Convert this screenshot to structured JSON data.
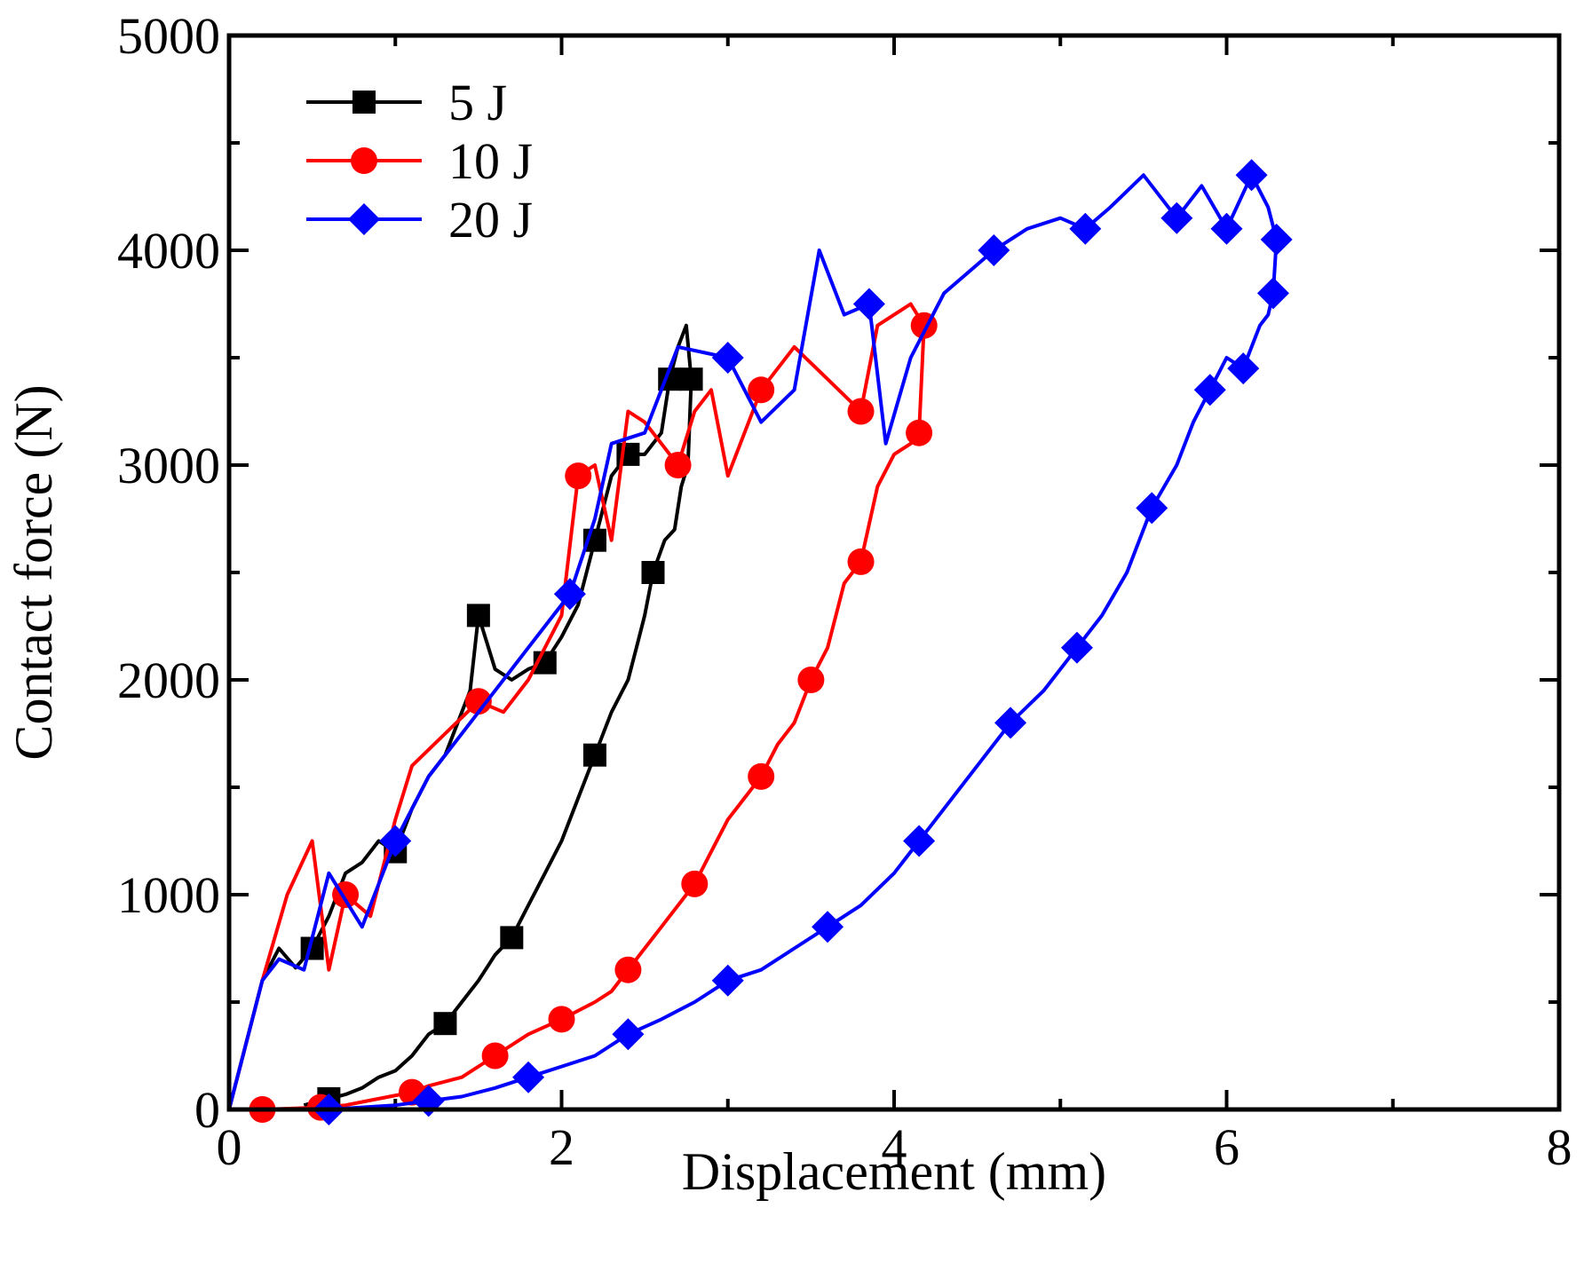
{
  "chart_data": {
    "type": "line",
    "title": "",
    "xlabel": "Displacement (mm)",
    "ylabel": "Contact force (N)",
    "xlim": [
      0,
      8
    ],
    "ylim": [
      0,
      5000
    ],
    "xticks": [
      0,
      2,
      4,
      6,
      8
    ],
    "xtick_labels": [
      "0",
      "2",
      "4",
      "6",
      "8"
    ],
    "yticks": [
      0,
      1000,
      2000,
      3000,
      4000,
      5000
    ],
    "ytick_labels": [
      "0",
      "1000",
      "2000",
      "3000",
      "4000",
      "5000"
    ],
    "legend_position": "top-left",
    "series": [
      {
        "name": "5 J",
        "color": "#000000",
        "marker": "square",
        "x": [
          0,
          0.1,
          0.2,
          0.3,
          0.4,
          0.5,
          0.6,
          0.7,
          0.8,
          0.9,
          1.0,
          1.1,
          1.2,
          1.3,
          1.45,
          1.5,
          1.6,
          1.7,
          1.8,
          1.9,
          2.0,
          2.1,
          2.2,
          2.3,
          2.4,
          2.5,
          2.6,
          2.65,
          2.7,
          2.75,
          2.78,
          2.76,
          2.72,
          2.68,
          2.62,
          2.55,
          2.5,
          2.45,
          2.4,
          2.3,
          2.2,
          2.1,
          2.0,
          1.9,
          1.8,
          1.7,
          1.6,
          1.5,
          1.4,
          1.3,
          1.2,
          1.1,
          1.0,
          0.9,
          0.8,
          0.7,
          0.6,
          0.5,
          0.45
        ],
        "y": [
          0,
          300,
          600,
          750,
          660,
          750,
          900,
          1100,
          1150,
          1250,
          1200,
          1400,
          1550,
          1650,
          1950,
          2300,
          2050,
          2000,
          2050,
          2080,
          2200,
          2350,
          2650,
          2950,
          3050,
          3050,
          3150,
          3400,
          3550,
          3650,
          3400,
          3000,
          2900,
          2700,
          2650,
          2500,
          2300,
          2150,
          2000,
          1850,
          1650,
          1450,
          1250,
          1100,
          950,
          800,
          720,
          600,
          500,
          400,
          350,
          250,
          180,
          150,
          100,
          70,
          50,
          30,
          20
        ],
        "marker_indices": [
          5,
          10,
          15,
          19,
          22,
          24,
          27,
          30,
          35,
          40,
          45,
          49,
          56
        ]
      },
      {
        "name": "10 J",
        "color": "#ff0000",
        "marker": "circle",
        "x": [
          0,
          0.1,
          0.2,
          0.35,
          0.5,
          0.6,
          0.7,
          0.85,
          1.0,
          1.1,
          1.3,
          1.5,
          1.65,
          1.8,
          2.0,
          2.1,
          2.2,
          2.3,
          2.4,
          2.5,
          2.6,
          2.7,
          2.8,
          2.9,
          3.0,
          3.2,
          3.4,
          3.6,
          3.8,
          3.9,
          4.0,
          4.1,
          4.18,
          4.15,
          4.1,
          4.0,
          3.9,
          3.8,
          3.7,
          3.6,
          3.5,
          3.4,
          3.3,
          3.2,
          3.1,
          3.0,
          2.9,
          2.8,
          2.7,
          2.6,
          2.5,
          2.4,
          2.3,
          2.2,
          2.0,
          1.8,
          1.6,
          1.4,
          1.2,
          1.1,
          0.9,
          0.7,
          0.55,
          0.4,
          0.2
        ],
        "y": [
          0,
          300,
          600,
          1000,
          1250,
          650,
          1000,
          900,
          1350,
          1600,
          1750,
          1900,
          1850,
          2000,
          2300,
          2950,
          3000,
          2650,
          3250,
          3200,
          3100,
          3000,
          3250,
          3350,
          2950,
          3350,
          3550,
          3400,
          3250,
          3650,
          3700,
          3750,
          3650,
          3150,
          3100,
          3050,
          2900,
          2550,
          2450,
          2150,
          2000,
          1800,
          1700,
          1550,
          1450,
          1350,
          1200,
          1050,
          950,
          850,
          750,
          650,
          550,
          500,
          420,
          350,
          250,
          150,
          110,
          80,
          50,
          20,
          10,
          5,
          0
        ],
        "marker_indices": [
          6,
          11,
          15,
          21,
          25,
          28,
          32,
          33,
          37,
          40,
          43,
          47,
          51,
          54,
          56,
          59,
          62,
          64
        ]
      },
      {
        "name": "20 J",
        "color": "#0000ff",
        "marker": "diamond",
        "x": [
          0,
          0.1,
          0.2,
          0.3,
          0.45,
          0.6,
          0.8,
          1.0,
          1.2,
          1.5,
          1.8,
          2.05,
          2.2,
          2.3,
          2.5,
          2.7,
          3.0,
          3.2,
          3.4,
          3.55,
          3.7,
          3.85,
          3.95,
          4.1,
          4.3,
          4.6,
          4.8,
          5.0,
          5.15,
          5.3,
          5.5,
          5.7,
          5.85,
          6.0,
          6.15,
          6.25,
          6.3,
          6.28,
          6.25,
          6.2,
          6.1,
          6.0,
          5.9,
          5.8,
          5.7,
          5.55,
          5.4,
          5.25,
          5.1,
          4.9,
          4.7,
          4.5,
          4.3,
          4.15,
          4.0,
          3.8,
          3.6,
          3.4,
          3.2,
          3.0,
          2.8,
          2.6,
          2.4,
          2.2,
          2.0,
          1.8,
          1.6,
          1.4,
          1.2,
          1.0,
          0.8,
          0.6
        ],
        "y": [
          0,
          300,
          600,
          700,
          650,
          1100,
          850,
          1250,
          1550,
          1850,
          2150,
          2400,
          2750,
          3100,
          3150,
          3550,
          3500,
          3200,
          3350,
          4000,
          3700,
          3750,
          3100,
          3500,
          3800,
          4000,
          4100,
          4150,
          4100,
          4200,
          4350,
          4150,
          4300,
          4100,
          4350,
          4200,
          4050,
          3800,
          3700,
          3650,
          3450,
          3500,
          3350,
          3200,
          3000,
          2800,
          2500,
          2300,
          2150,
          1950,
          1800,
          1600,
          1400,
          1250,
          1100,
          950,
          850,
          750,
          650,
          600,
          500,
          420,
          350,
          250,
          200,
          150,
          100,
          60,
          40,
          20,
          10,
          0
        ],
        "marker_indices": [
          7,
          11,
          16,
          21,
          25,
          28,
          31,
          33,
          34,
          36,
          37,
          40,
          42,
          45,
          48,
          50,
          53,
          56,
          59,
          62,
          65,
          68,
          71
        ]
      }
    ]
  }
}
